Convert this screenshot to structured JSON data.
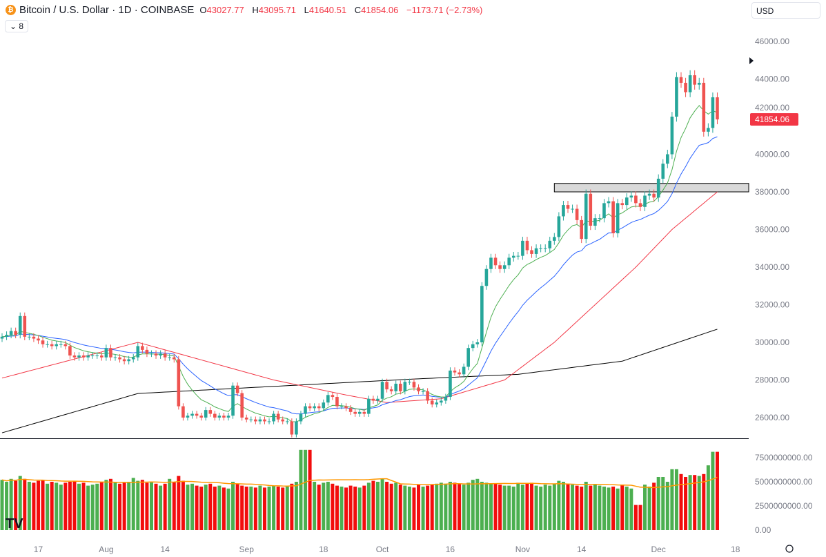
{
  "header": {
    "symbol_title": "Bitcoin / U.S. Dollar · 1D · COINBASE",
    "o_label": "O",
    "o": "43027.77",
    "h_label": "H",
    "h": "43095.71",
    "l_label": "L",
    "l": "41640.51",
    "c_label": "C",
    "c": "41854.06",
    "change": "−1173.71 (−2.73%)",
    "indicator_count": "8",
    "currency": "USD",
    "logo_text": "TV"
  },
  "colors": {
    "up": "#26a69a",
    "down": "#ef5350",
    "vol_up": "#4caf50",
    "vol_down": "#f20d0d",
    "ema_fast": "#4caf50",
    "ema_slow": "#2962ff",
    "ma_mid": "#f23645",
    "ma_long": "#000000",
    "vol_ma": "#ff9800"
  },
  "chart_data": {
    "type": "candlestick",
    "title": "Bitcoin / U.S. Dollar · 1D · COINBASE",
    "first_open": 30200,
    "closes": [
      30300,
      30400,
      30600,
      30400,
      31400,
      30300,
      30300,
      30200,
      30100,
      29900,
      29900,
      29800,
      29900,
      29900,
      29800,
      29300,
      29200,
      29300,
      29200,
      29300,
      29300,
      29300,
      29200,
      29700,
      29200,
      29200,
      29100,
      29000,
      29100,
      29200,
      29800,
      29600,
      29400,
      29400,
      29300,
      29400,
      29200,
      29200,
      29100,
      26600,
      26000,
      26100,
      26200,
      26100,
      26000,
      26400,
      26200,
      26000,
      26100,
      26000,
      26100,
      27700,
      27300,
      26000,
      25900,
      25900,
      25800,
      25900,
      25800,
      25800,
      26200,
      25900,
      25800,
      25800,
      25100,
      25800,
      26200,
      26600,
      26500,
      26600,
      26500,
      26800,
      27200,
      27100,
      26600,
      26600,
      26500,
      26300,
      26200,
      26300,
      26200,
      27000,
      26900,
      27000,
      27900,
      27500,
      27400,
      27800,
      27400,
      27900,
      27900,
      27600,
      27400,
      27400,
      26900,
      26700,
      26800,
      26900,
      27100,
      28500,
      28400,
      28300,
      28700,
      29700,
      29900,
      30000,
      33000,
      33900,
      34500,
      34100,
      33900,
      34100,
      34500,
      34600,
      34600,
      35400,
      34900,
      34700,
      35000,
      35000,
      35000,
      35400,
      35600,
      36700,
      37300,
      37100,
      37100,
      36500,
      35500,
      37900,
      36200,
      36600,
      36600,
      37400,
      37500,
      35800,
      37400,
      37300,
      37700,
      37800,
      37400,
      37200,
      37800,
      37900,
      37700,
      38700,
      39500,
      40000,
      42000,
      44100,
      43800,
      43300,
      44200,
      43700,
      43800,
      41200,
      41400,
      43027.77,
      41854.06
    ],
    "volumes_billion": [
      5.2,
      5.0,
      5.3,
      5.1,
      5.6,
      5.3,
      5.0,
      4.9,
      5.1,
      5.2,
      4.8,
      5.0,
      4.9,
      4.7,
      4.9,
      5.0,
      5.1,
      4.8,
      4.9,
      4.6,
      4.7,
      4.8,
      5.0,
      5.2,
      5.3,
      5.0,
      4.8,
      4.9,
      5.0,
      5.4,
      5.1,
      5.2,
      4.9,
      5.0,
      4.8,
      4.6,
      4.8,
      5.3,
      5.0,
      5.6,
      5.1,
      4.7,
      4.8,
      4.6,
      4.5,
      4.7,
      4.8,
      4.5,
      4.6,
      4.4,
      4.3,
      5.0,
      4.8,
      4.6,
      4.5,
      4.5,
      4.4,
      4.6,
      4.4,
      4.5,
      4.6,
      4.5,
      4.4,
      4.5,
      4.8,
      5.0,
      8.3,
      8.3,
      8.3,
      5.0,
      4.7,
      4.9,
      5.0,
      4.8,
      4.6,
      4.5,
      4.4,
      4.6,
      4.5,
      4.4,
      4.6,
      4.9,
      5.1,
      5.0,
      5.3,
      5.0,
      4.8,
      4.9,
      4.7,
      4.6,
      4.5,
      4.4,
      4.7,
      4.5,
      4.6,
      4.7,
      4.8,
      4.9,
      4.8,
      5.0,
      4.9,
      4.8,
      4.7,
      4.9,
      5.2,
      5.3,
      5.0,
      4.9,
      4.8,
      4.8,
      4.7,
      4.6,
      4.6,
      4.5,
      4.9,
      4.7,
      4.8,
      4.9,
      4.6,
      4.5,
      4.7,
      4.6,
      4.8,
      5.1,
      5.0,
      4.8,
      4.7,
      4.6,
      4.5,
      5.0,
      4.6,
      4.7,
      4.6,
      4.5,
      4.4,
      4.5,
      4.3,
      4.7,
      4.5,
      4.3,
      2.6,
      2.6,
      4.7,
      4.5,
      4.9,
      5.5,
      5.5,
      5.0,
      6.3,
      6.3,
      5.8,
      5.5,
      5.7,
      5.7,
      5.6,
      5.8,
      6.7,
      8.1,
      8.1
    ],
    "ma_mid_points": [
      [
        0,
        28100
      ],
      [
        30,
        30000
      ],
      [
        45,
        29000
      ],
      [
        60,
        28000
      ],
      [
        76,
        27200
      ],
      [
        85,
        26800
      ],
      [
        97,
        27000
      ],
      [
        111,
        28000
      ],
      [
        122,
        30000
      ],
      [
        131,
        32000
      ],
      [
        140,
        34000
      ],
      [
        148,
        36000
      ],
      [
        158,
        38000
      ]
    ],
    "ma_long_points": [
      [
        0,
        25190
      ],
      [
        30,
        27280
      ],
      [
        53,
        27570
      ],
      [
        91,
        28050
      ],
      [
        114,
        28300
      ],
      [
        137,
        29000
      ],
      [
        158,
        30700
      ]
    ],
    "zone": {
      "from_day": 122,
      "low": 38000,
      "high": 38450
    },
    "price_axis": {
      "labels": [
        "46000.00",
        "44000.00",
        "42000.00",
        "40000.00",
        "38000.00",
        "36000.00",
        "34000.00",
        "32000.00",
        "30000.00",
        "28000.00",
        "26000.00"
      ],
      "range": [
        24900,
        48200
      ]
    },
    "last_price_label": "41854.06",
    "volume_axis": {
      "labels": [
        "7500000000.00",
        "5000000000.00",
        "2500000000.00",
        "0.00"
      ]
    },
    "time_axis": [
      {
        "label": "17",
        "day": 8
      },
      {
        "label": "Aug",
        "day": 23
      },
      {
        "label": "14",
        "day": 36
      },
      {
        "label": "Sep",
        "day": 54
      },
      {
        "label": "18",
        "day": 71
      },
      {
        "label": "Oct",
        "day": 84
      },
      {
        "label": "16",
        "day": 99
      },
      {
        "label": "Nov",
        "day": 115
      },
      {
        "label": "14",
        "day": 128
      },
      {
        "label": "Dec",
        "day": 145
      },
      {
        "label": "18",
        "day": 162
      }
    ]
  }
}
